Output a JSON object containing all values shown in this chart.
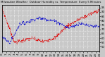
{
  "title": "Milwaukee Weather  Outdoor Humidity vs. Temperature  Every 5 Minutes",
  "bg_color": "#c8c8c8",
  "plot_bg": "#c8c8c8",
  "red_color": "#dd0000",
  "blue_color": "#0000cc",
  "right_ytick_labels": [
    "95",
    "90",
    "85",
    "80",
    "75",
    "70",
    "65",
    "60",
    "55",
    "50"
  ],
  "right_ytick_vals": [
    0.95,
    0.855,
    0.76,
    0.665,
    0.57,
    0.475,
    0.38,
    0.285,
    0.19,
    0.095
  ],
  "n_points": 288,
  "noise_seed": 7
}
